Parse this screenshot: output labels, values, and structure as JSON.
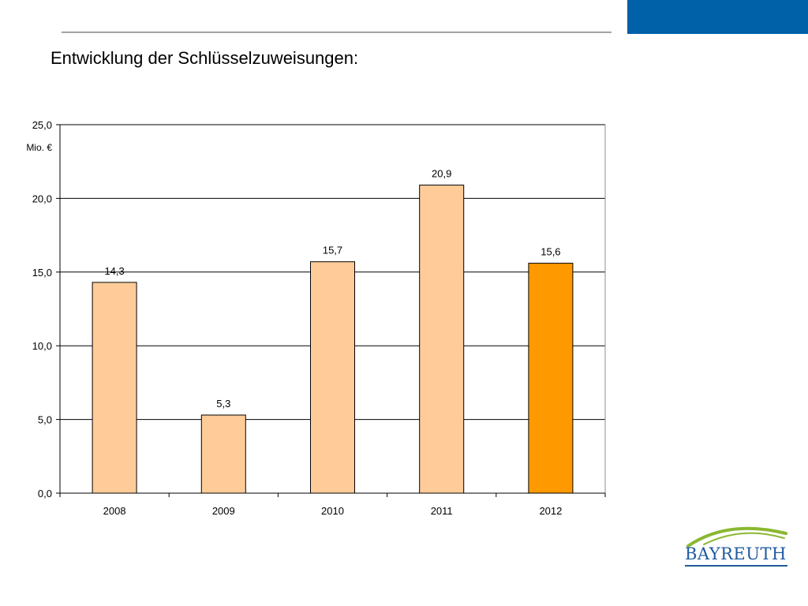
{
  "slide": {
    "title": "Entwicklung der Schlüsselzuweisungen:",
    "accent_color": "#0060a8"
  },
  "logo": {
    "text": "BAYREUTH",
    "text_color": "#1f5aa0",
    "arc_color": "#8ab832"
  },
  "chart_data": {
    "type": "bar",
    "title": "",
    "unit_label": "Mio. €",
    "categories": [
      "2008",
      "2009",
      "2010",
      "2011",
      "2012"
    ],
    "values": [
      14.3,
      5.3,
      15.7,
      20.9,
      15.6
    ],
    "value_labels": [
      "14,3",
      "5,3",
      "15,7",
      "20,9",
      "15,6"
    ],
    "ylim": [
      0,
      25
    ],
    "yticks": [
      0,
      5,
      10,
      15,
      20,
      25
    ],
    "ytick_labels": [
      "0,0",
      "5,0",
      "10,0",
      "15,0",
      "20,0",
      "25,0"
    ],
    "grid": true,
    "bar_colors": [
      "#ffcc99",
      "#ffcc99",
      "#ffcc99",
      "#ffcc99",
      "#ff9900"
    ]
  }
}
